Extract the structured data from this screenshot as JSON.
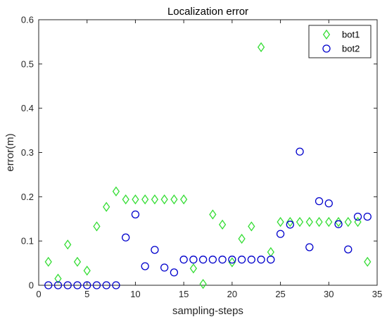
{
  "chart_data": {
    "type": "scatter",
    "title": "Localization error",
    "xlabel": "sampling-steps",
    "ylabel": "error(m)",
    "xlim": [
      0,
      35
    ],
    "ylim": [
      0,
      0.6
    ],
    "xticks": [
      0,
      5,
      10,
      15,
      20,
      25,
      30,
      35
    ],
    "yticks": [
      0,
      0.1,
      0.2,
      0.3,
      0.4,
      0.5,
      0.6
    ],
    "xtick_labels": [
      "0",
      "5",
      "10",
      "15",
      "20",
      "25",
      "30",
      "35"
    ],
    "ytick_labels": [
      "0",
      "0.1",
      "0.2",
      "0.3",
      "0.4",
      "0.5",
      "0.6"
    ],
    "grid": false,
    "legend_position": "top-right",
    "series": [
      {
        "name": "bot1",
        "marker": "diamond",
        "color": "#33dd33",
        "x": [
          1,
          2,
          3,
          4,
          5,
          6,
          7,
          8,
          9,
          10,
          11,
          12,
          13,
          14,
          15,
          16,
          17,
          18,
          19,
          20,
          21,
          22,
          23,
          24,
          25,
          26,
          27,
          28,
          29,
          30,
          31,
          32,
          33,
          34
        ],
        "y": [
          0.053,
          0.015,
          0.092,
          0.053,
          0.033,
          0.133,
          0.177,
          0.212,
          0.194,
          0.194,
          0.194,
          0.194,
          0.194,
          0.194,
          0.194,
          0.038,
          0.003,
          0.16,
          0.137,
          0.052,
          0.105,
          0.133,
          0.538,
          0.075,
          0.143,
          0.143,
          0.143,
          0.143,
          0.143,
          0.143,
          0.143,
          0.143,
          0.143,
          0.053
        ]
      },
      {
        "name": "bot2",
        "marker": "circle",
        "color": "#0000cc",
        "x": [
          1,
          2,
          3,
          4,
          5,
          6,
          7,
          8,
          9,
          10,
          11,
          12,
          13,
          14,
          15,
          16,
          17,
          18,
          19,
          20,
          21,
          22,
          23,
          24,
          25,
          26,
          27,
          28,
          29,
          30,
          31,
          32,
          33,
          34
        ],
        "y": [
          0,
          0,
          0,
          0,
          0,
          0,
          0,
          0,
          0.108,
          0.16,
          0.043,
          0.08,
          0.04,
          0.029,
          0.058,
          0.058,
          0.058,
          0.058,
          0.058,
          0.058,
          0.058,
          0.058,
          0.058,
          0.058,
          0.116,
          0.137,
          0.302,
          0.086,
          0.19,
          0.185,
          0.138,
          0.081,
          0.155,
          0.155
        ]
      }
    ]
  }
}
